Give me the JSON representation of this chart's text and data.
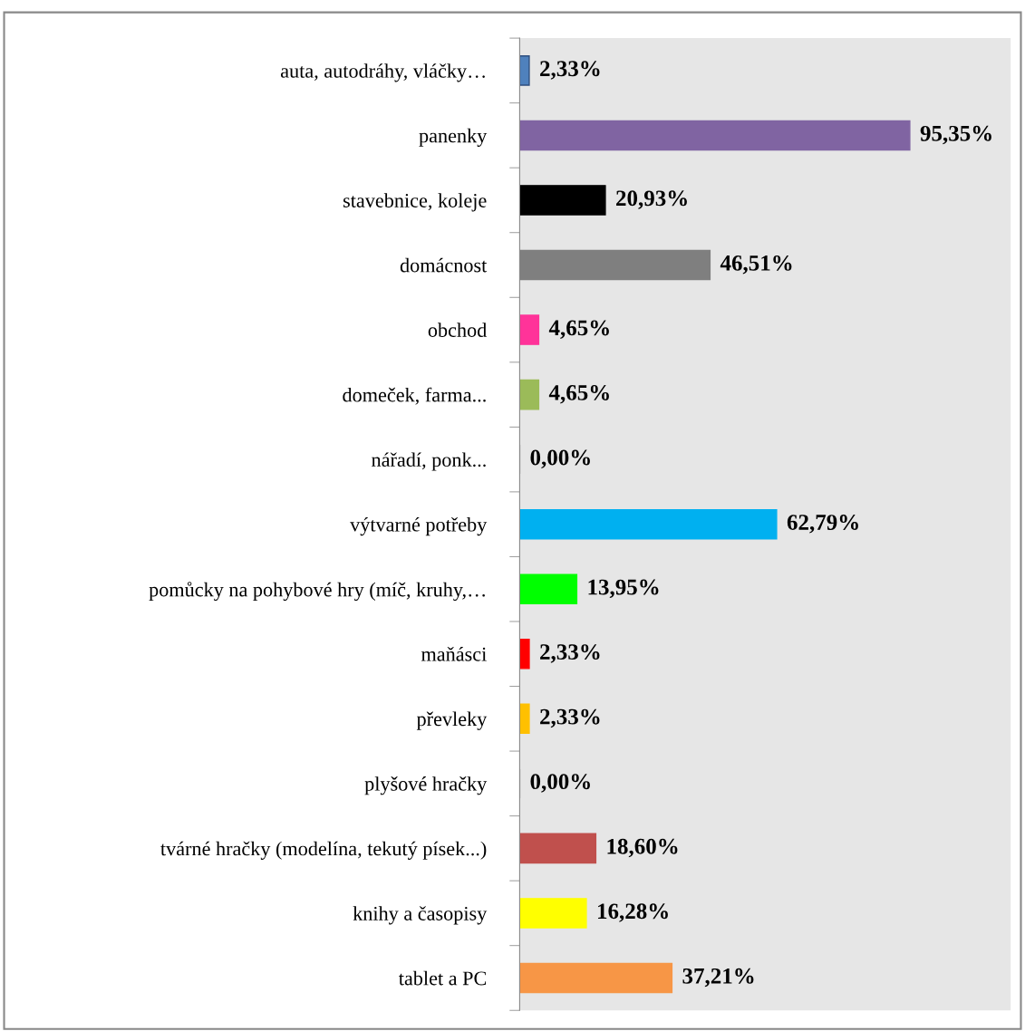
{
  "chart_data": {
    "type": "bar",
    "orientation": "horizontal",
    "categories": [
      "auta, autodráhy, vláčky…",
      "panenky",
      "stavebnice, koleje",
      "domácnost",
      "obchod",
      "domeček, farma...",
      "nářadí, ponk...",
      "výtvarné potřeby",
      "pomůcky na pohybové hry (míč, kruhy,…",
      "maňásci",
      "převleky",
      "plyšové hračky",
      "tvárné hračky (modelína, tekutý písek...)",
      "knihy a časopisy",
      "tablet a PC"
    ],
    "values": [
      2.33,
      95.35,
      20.93,
      46.51,
      4.65,
      4.65,
      0.0,
      62.79,
      13.95,
      2.33,
      2.33,
      0.0,
      18.6,
      16.28,
      37.21
    ],
    "colors": [
      "#4f81bd",
      "#8064a2",
      "#000000",
      "#7f7f7f",
      "#ff3399",
      "#9bbb59",
      "#7f7f7f",
      "#00b0f0",
      "#00ff00",
      "#ff0000",
      "#ffc000",
      "#7f7f7f",
      "#c0504d",
      "#ffff00",
      "#f79646"
    ],
    "value_labels": [
      "2,33%",
      "95,35%",
      "20,93%",
      "46,51%",
      "4,65%",
      "4,65%",
      "0,00%",
      "62,79%",
      "13,95%",
      "2,33%",
      "2,33%",
      "0,00%",
      "18,60%",
      "16,28%",
      "37,21%"
    ],
    "xlim": [
      0,
      120
    ],
    "tick_labels": "y",
    "grid": false,
    "legend": false
  }
}
